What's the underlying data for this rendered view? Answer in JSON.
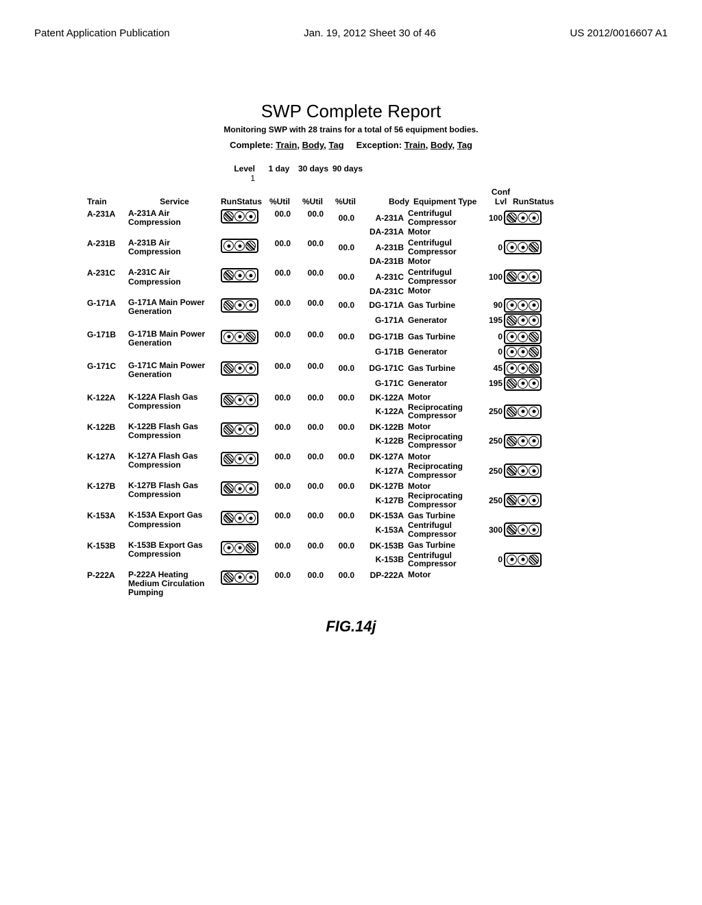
{
  "header": {
    "left": "Patent Application Publication",
    "center": "Jan. 19, 2012  Sheet 30 of 46",
    "right": "US 2012/0016607 A1"
  },
  "report": {
    "title": "SWP Complete Report",
    "subtitle": "Monitoring SWP with 28 trains for a total of 56 equipment bodies.",
    "complete_label": "Complete:",
    "exception_label": "Exception:",
    "link_train": "Train",
    "link_body": "Body",
    "link_tag": "Tag"
  },
  "level_header": {
    "level": "Level",
    "level_num": "1",
    "day1": "1 day",
    "day30": "30 days",
    "day90": "90 days"
  },
  "cols": {
    "train": "Train",
    "service": "Service",
    "runstatus": "RunStatus",
    "util": "%Util",
    "body": "Body",
    "eqtype": "Equipment Type",
    "conf": "Conf Lvl",
    "runstatus2": "RunStatus"
  },
  "rows": [
    {
      "train": "A-231A",
      "service": "A-231A Air Compression",
      "pattern": "hdd",
      "u1": "00.0",
      "u30": "00.0",
      "bodies": [
        {
          "u90": "00.0",
          "body": "A-231A",
          "eq": "Centrifugul Compressor",
          "conf": "100",
          "pattern": "hdd"
        },
        {
          "u90": "",
          "body": "DA-231A",
          "eq": "Motor",
          "conf": "",
          "pattern": ""
        }
      ]
    },
    {
      "train": "A-231B",
      "service": "A-231B Air Compression",
      "pattern": "ddh",
      "u1": "00.0",
      "u30": "00.0",
      "bodies": [
        {
          "u90": "00.0",
          "body": "A-231B",
          "eq": "Centrifugul Compressor",
          "conf": "0",
          "pattern": "ddh"
        },
        {
          "u90": "",
          "body": "DA-231B",
          "eq": "Motor",
          "conf": "",
          "pattern": ""
        }
      ]
    },
    {
      "train": "A-231C",
      "service": "A-231C Air Compression",
      "pattern": "hdd",
      "u1": "00.0",
      "u30": "00.0",
      "bodies": [
        {
          "u90": "00.0",
          "body": "A-231C",
          "eq": "Centrifugul Compressor",
          "conf": "100",
          "pattern": "hdd"
        },
        {
          "u90": "",
          "body": "DA-231C",
          "eq": "Motor",
          "conf": "",
          "pattern": ""
        }
      ]
    },
    {
      "train": "G-171A",
      "service": "G-171A Main Power Generation",
      "pattern": "hdd",
      "u1": "00.0",
      "u30": "00.0",
      "bodies": [
        {
          "u90": "00.0",
          "body": "DG-171A",
          "eq": "Gas Turbine",
          "conf": "90",
          "pattern": "ddd"
        },
        {
          "u90": "",
          "body": "G-171A",
          "eq": "Generator",
          "conf": "195",
          "pattern": "hdd"
        }
      ]
    },
    {
      "train": "G-171B",
      "service": "G-171B Main Power Generation",
      "pattern": "ddh",
      "u1": "00.0",
      "u30": "00.0",
      "bodies": [
        {
          "u90": "00.0",
          "body": "DG-171B",
          "eq": "Gas Turbine",
          "conf": "0",
          "pattern": "ddh"
        },
        {
          "u90": "",
          "body": "G-171B",
          "eq": "Generator",
          "conf": "0",
          "pattern": "ddh"
        }
      ]
    },
    {
      "train": "G-171C",
      "service": "G-171C Main Power Generation",
      "pattern": "hdd",
      "u1": "00.0",
      "u30": "00.0",
      "bodies": [
        {
          "u90": "00.0",
          "body": "DG-171C",
          "eq": "Gas Turbine",
          "conf": "45",
          "pattern": "ddh"
        },
        {
          "u90": "",
          "body": "G-171C",
          "eq": "Generator",
          "conf": "195",
          "pattern": "hdd"
        }
      ]
    },
    {
      "train": "K-122A",
      "service": "K-122A Flash Gas Compression",
      "pattern": "hdd",
      "u1": "00.0",
      "u30": "00.0",
      "bodies": [
        {
          "u90": "00.0",
          "body": "DK-122A",
          "eq": "Motor",
          "conf": "",
          "pattern": ""
        },
        {
          "u90": "",
          "body": "K-122A",
          "eq": "Reciprocating Compressor",
          "conf": "250",
          "pattern": "hdd"
        }
      ]
    },
    {
      "train": "K-122B",
      "service": "K-122B Flash Gas Compression",
      "pattern": "hdd",
      "u1": "00.0",
      "u30": "00.0",
      "bodies": [
        {
          "u90": "00.0",
          "body": "DK-122B",
          "eq": "Motor",
          "conf": "",
          "pattern": ""
        },
        {
          "u90": "",
          "body": "K-122B",
          "eq": "Reciprocating Compressor",
          "conf": "250",
          "pattern": "hdd"
        }
      ]
    },
    {
      "train": "K-127A",
      "service": "K-127A Flash Gas Compression",
      "pattern": "hdd",
      "u1": "00.0",
      "u30": "00.0",
      "bodies": [
        {
          "u90": "00.0",
          "body": "DK-127A",
          "eq": "Motor",
          "conf": "",
          "pattern": ""
        },
        {
          "u90": "",
          "body": "K-127A",
          "eq": "Reciprocating Compressor",
          "conf": "250",
          "pattern": "hdd"
        }
      ]
    },
    {
      "train": "K-127B",
      "service": "K-127B Flash Gas Compression",
      "pattern": "hdd",
      "u1": "00.0",
      "u30": "00.0",
      "bodies": [
        {
          "u90": "00.0",
          "body": "DK-127B",
          "eq": "Motor",
          "conf": "",
          "pattern": ""
        },
        {
          "u90": "",
          "body": "K-127B",
          "eq": "Reciprocating Compressor",
          "conf": "250",
          "pattern": "hdd"
        }
      ]
    },
    {
      "train": "K-153A",
      "service": "K-153A Export Gas Compression",
      "pattern": "hdd",
      "u1": "00.0",
      "u30": "00.0",
      "bodies": [
        {
          "u90": "00.0",
          "body": "DK-153A",
          "eq": "Gas Turbine",
          "conf": "",
          "pattern": ""
        },
        {
          "u90": "",
          "body": "K-153A",
          "eq": "Centrifugul Compressor",
          "conf": "300",
          "pattern": "hdd"
        }
      ]
    },
    {
      "train": "K-153B",
      "service": "K-153B Export Gas Compression",
      "pattern": "ddh",
      "u1": "00.0",
      "u30": "00.0",
      "bodies": [
        {
          "u90": "00.0",
          "body": "DK-153B",
          "eq": "Gas Turbine",
          "conf": "",
          "pattern": ""
        },
        {
          "u90": "",
          "body": "K-153B",
          "eq": "Centrifugul Compressor",
          "conf": "0",
          "pattern": "ddh"
        }
      ]
    },
    {
      "train": "P-222A",
      "service": "P-222A Heating Medium Circulation Pumping",
      "pattern": "hdd",
      "u1": "00.0",
      "u30": "00.0",
      "bodies": [
        {
          "u90": "00.0",
          "body": "DP-222A",
          "eq": "Motor",
          "conf": "",
          "pattern": ""
        }
      ]
    }
  ],
  "figure": "FIG.14j"
}
